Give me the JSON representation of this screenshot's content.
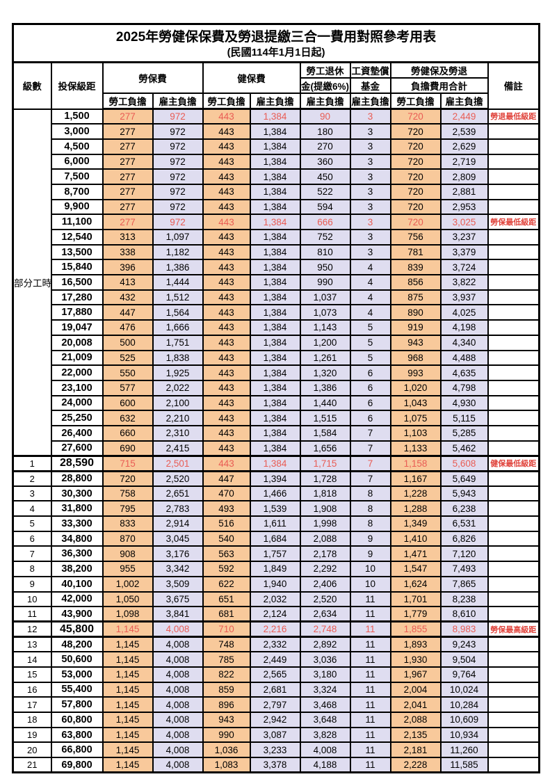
{
  "title": "2025年勞健保保費及勞退提繳三合一費用對照參考用表",
  "subtitle": "(民國114年1月1日起)",
  "header": {
    "level": "級數",
    "bracket": "投保級距",
    "labor_fee": "勞保費",
    "health_fee": "健保費",
    "pension_line1": "勞工退休",
    "pension_line2": "金(提繳6%)",
    "wage_fund_line1": "工資墊償",
    "wage_fund_line2": "基金",
    "total_line1": "勞健保及勞退",
    "total_line2": "負擔費用合計",
    "note": "備註",
    "employee": "勞工負擔",
    "employer": "雇主負擔"
  },
  "part_time_label": "部分工時",
  "part_time_group_size": 23,
  "colors": {
    "employee_cell_bg": "#F8C99B",
    "employer_cell_bg": "#DFDDF0",
    "highlight_number_red": "#E95C54",
    "note_red": "#E0443C",
    "border_black": "#000000"
  },
  "rows": [
    {
      "level": "",
      "bracket": "1,500",
      "fees": [
        "277",
        "972",
        "443",
        "1,384",
        "90",
        "3",
        "720",
        "2,449"
      ],
      "note": "勞退最低級距",
      "red": true,
      "thick": false
    },
    {
      "level": "",
      "bracket": "3,000",
      "fees": [
        "277",
        "972",
        "443",
        "1,384",
        "180",
        "3",
        "720",
        "2,539"
      ],
      "note": "",
      "red": false,
      "thick": false
    },
    {
      "level": "",
      "bracket": "4,500",
      "fees": [
        "277",
        "972",
        "443",
        "1,384",
        "270",
        "3",
        "720",
        "2,629"
      ],
      "note": "",
      "red": false,
      "thick": false
    },
    {
      "level": "",
      "bracket": "6,000",
      "fees": [
        "277",
        "972",
        "443",
        "1,384",
        "360",
        "3",
        "720",
        "2,719"
      ],
      "note": "",
      "red": false,
      "thick": false
    },
    {
      "level": "",
      "bracket": "7,500",
      "fees": [
        "277",
        "972",
        "443",
        "1,384",
        "450",
        "3",
        "720",
        "2,809"
      ],
      "note": "",
      "red": false,
      "thick": false
    },
    {
      "level": "",
      "bracket": "8,700",
      "fees": [
        "277",
        "972",
        "443",
        "1,384",
        "522",
        "3",
        "720",
        "2,881"
      ],
      "note": "",
      "red": false,
      "thick": false
    },
    {
      "level": "",
      "bracket": "9,900",
      "fees": [
        "277",
        "972",
        "443",
        "1,384",
        "594",
        "3",
        "720",
        "2,953"
      ],
      "note": "",
      "red": false,
      "thick": false
    },
    {
      "level": "",
      "bracket": "11,100",
      "fees": [
        "277",
        "972",
        "443",
        "1,384",
        "666",
        "3",
        "720",
        "3,025"
      ],
      "note": "勞保最低級距",
      "red": true,
      "thick": false
    },
    {
      "level": "",
      "bracket": "12,540",
      "fees": [
        "313",
        "1,097",
        "443",
        "1,384",
        "752",
        "3",
        "756",
        "3,237"
      ],
      "note": "",
      "red": false,
      "thick": false
    },
    {
      "level": "",
      "bracket": "13,500",
      "fees": [
        "338",
        "1,182",
        "443",
        "1,384",
        "810",
        "3",
        "781",
        "3,379"
      ],
      "note": "",
      "red": false,
      "thick": false
    },
    {
      "level": "",
      "bracket": "15,840",
      "fees": [
        "396",
        "1,386",
        "443",
        "1,384",
        "950",
        "4",
        "839",
        "3,724"
      ],
      "note": "",
      "red": false,
      "thick": false
    },
    {
      "level": "",
      "bracket": "16,500",
      "fees": [
        "413",
        "1,444",
        "443",
        "1,384",
        "990",
        "4",
        "856",
        "3,822"
      ],
      "note": "",
      "red": false,
      "thick": false
    },
    {
      "level": "",
      "bracket": "17,280",
      "fees": [
        "432",
        "1,512",
        "443",
        "1,384",
        "1,037",
        "4",
        "875",
        "3,937"
      ],
      "note": "",
      "red": false,
      "thick": false
    },
    {
      "level": "",
      "bracket": "17,880",
      "fees": [
        "447",
        "1,564",
        "443",
        "1,384",
        "1,073",
        "4",
        "890",
        "4,025"
      ],
      "note": "",
      "red": false,
      "thick": false
    },
    {
      "level": "",
      "bracket": "19,047",
      "fees": [
        "476",
        "1,666",
        "443",
        "1,384",
        "1,143",
        "5",
        "919",
        "4,198"
      ],
      "note": "",
      "red": false,
      "thick": false
    },
    {
      "level": "",
      "bracket": "20,008",
      "fees": [
        "500",
        "1,751",
        "443",
        "1,384",
        "1,200",
        "5",
        "943",
        "4,340"
      ],
      "note": "",
      "red": false,
      "thick": false
    },
    {
      "level": "",
      "bracket": "21,009",
      "fees": [
        "525",
        "1,838",
        "443",
        "1,384",
        "1,261",
        "5",
        "968",
        "4,488"
      ],
      "note": "",
      "red": false,
      "thick": false
    },
    {
      "level": "",
      "bracket": "22,000",
      "fees": [
        "550",
        "1,925",
        "443",
        "1,384",
        "1,320",
        "6",
        "993",
        "4,635"
      ],
      "note": "",
      "red": false,
      "thick": false
    },
    {
      "level": "",
      "bracket": "23,100",
      "fees": [
        "577",
        "2,022",
        "443",
        "1,384",
        "1,386",
        "6",
        "1,020",
        "4,798"
      ],
      "note": "",
      "red": false,
      "thick": false
    },
    {
      "level": "",
      "bracket": "24,000",
      "fees": [
        "600",
        "2,100",
        "443",
        "1,384",
        "1,440",
        "6",
        "1,043",
        "4,930"
      ],
      "note": "",
      "red": false,
      "thick": false
    },
    {
      "level": "",
      "bracket": "25,250",
      "fees": [
        "632",
        "2,210",
        "443",
        "1,384",
        "1,515",
        "6",
        "1,075",
        "5,115"
      ],
      "note": "",
      "red": false,
      "thick": false
    },
    {
      "level": "",
      "bracket": "26,400",
      "fees": [
        "660",
        "2,310",
        "443",
        "1,384",
        "1,584",
        "7",
        "1,103",
        "5,285"
      ],
      "note": "",
      "red": false,
      "thick": false
    },
    {
      "level": "",
      "bracket": "27,600",
      "fees": [
        "690",
        "2,415",
        "443",
        "1,384",
        "1,656",
        "7",
        "1,133",
        "5,462"
      ],
      "note": "",
      "red": false,
      "thick": false
    },
    {
      "level": "1",
      "bracket": "28,590",
      "fees": [
        "715",
        "2,501",
        "443",
        "1,384",
        "1,715",
        "7",
        "1,158",
        "5,608"
      ],
      "note": "健保最低級距",
      "red": true,
      "thick": true
    },
    {
      "level": "2",
      "bracket": "28,800",
      "fees": [
        "720",
        "2,520",
        "447",
        "1,394",
        "1,728",
        "7",
        "1,167",
        "5,649"
      ],
      "note": "",
      "red": false,
      "thick": false
    },
    {
      "level": "3",
      "bracket": "30,300",
      "fees": [
        "758",
        "2,651",
        "470",
        "1,466",
        "1,818",
        "8",
        "1,228",
        "5,943"
      ],
      "note": "",
      "red": false,
      "thick": false
    },
    {
      "level": "4",
      "bracket": "31,800",
      "fees": [
        "795",
        "2,783",
        "493",
        "1,539",
        "1,908",
        "8",
        "1,288",
        "6,238"
      ],
      "note": "",
      "red": false,
      "thick": false
    },
    {
      "level": "5",
      "bracket": "33,300",
      "fees": [
        "833",
        "2,914",
        "516",
        "1,611",
        "1,998",
        "8",
        "1,349",
        "6,531"
      ],
      "note": "",
      "red": false,
      "thick": false
    },
    {
      "level": "6",
      "bracket": "34,800",
      "fees": [
        "870",
        "3,045",
        "540",
        "1,684",
        "2,088",
        "9",
        "1,410",
        "6,826"
      ],
      "note": "",
      "red": false,
      "thick": false
    },
    {
      "level": "7",
      "bracket": "36,300",
      "fees": [
        "908",
        "3,176",
        "563",
        "1,757",
        "2,178",
        "9",
        "1,471",
        "7,120"
      ],
      "note": "",
      "red": false,
      "thick": false
    },
    {
      "level": "8",
      "bracket": "38,200",
      "fees": [
        "955",
        "3,342",
        "592",
        "1,849",
        "2,292",
        "10",
        "1,547",
        "7,493"
      ],
      "note": "",
      "red": false,
      "thick": false
    },
    {
      "level": "9",
      "bracket": "40,100",
      "fees": [
        "1,002",
        "3,509",
        "622",
        "1,940",
        "2,406",
        "10",
        "1,624",
        "7,865"
      ],
      "note": "",
      "red": false,
      "thick": false
    },
    {
      "level": "10",
      "bracket": "42,000",
      "fees": [
        "1,050",
        "3,675",
        "651",
        "2,032",
        "2,520",
        "11",
        "1,701",
        "8,238"
      ],
      "note": "",
      "red": false,
      "thick": false
    },
    {
      "level": "11",
      "bracket": "43,900",
      "fees": [
        "1,098",
        "3,841",
        "681",
        "2,124",
        "2,634",
        "11",
        "1,779",
        "8,610"
      ],
      "note": "",
      "red": false,
      "thick": false
    },
    {
      "level": "12",
      "bracket": "45,800",
      "fees": [
        "1,145",
        "4,008",
        "710",
        "2,216",
        "2,748",
        "11",
        "1,855",
        "8,983"
      ],
      "note": "勞保最高級距",
      "red": true,
      "thick": true
    },
    {
      "level": "13",
      "bracket": "48,200",
      "fees": [
        "1,145",
        "4,008",
        "748",
        "2,332",
        "2,892",
        "11",
        "1,893",
        "9,243"
      ],
      "note": "",
      "red": false,
      "thick": false
    },
    {
      "level": "14",
      "bracket": "50,600",
      "fees": [
        "1,145",
        "4,008",
        "785",
        "2,449",
        "3,036",
        "11",
        "1,930",
        "9,504"
      ],
      "note": "",
      "red": false,
      "thick": false
    },
    {
      "level": "15",
      "bracket": "53,000",
      "fees": [
        "1,145",
        "4,008",
        "822",
        "2,565",
        "3,180",
        "11",
        "1,967",
        "9,764"
      ],
      "note": "",
      "red": false,
      "thick": false
    },
    {
      "level": "16",
      "bracket": "55,400",
      "fees": [
        "1,145",
        "4,008",
        "859",
        "2,681",
        "3,324",
        "11",
        "2,004",
        "10,024"
      ],
      "note": "",
      "red": false,
      "thick": false
    },
    {
      "level": "17",
      "bracket": "57,800",
      "fees": [
        "1,145",
        "4,008",
        "896",
        "2,797",
        "3,468",
        "11",
        "2,041",
        "10,284"
      ],
      "note": "",
      "red": false,
      "thick": false
    },
    {
      "level": "18",
      "bracket": "60,800",
      "fees": [
        "1,145",
        "4,008",
        "943",
        "2,942",
        "3,648",
        "11",
        "2,088",
        "10,609"
      ],
      "note": "",
      "red": false,
      "thick": false
    },
    {
      "level": "19",
      "bracket": "63,800",
      "fees": [
        "1,145",
        "4,008",
        "990",
        "3,087",
        "3,828",
        "11",
        "2,135",
        "10,934"
      ],
      "note": "",
      "red": false,
      "thick": false
    },
    {
      "level": "20",
      "bracket": "66,800",
      "fees": [
        "1,145",
        "4,008",
        "1,036",
        "3,233",
        "4,008",
        "11",
        "2,181",
        "11,260"
      ],
      "note": "",
      "red": false,
      "thick": false
    },
    {
      "level": "21",
      "bracket": "69,800",
      "fees": [
        "1,145",
        "4,008",
        "1,083",
        "3,378",
        "4,188",
        "11",
        "2,228",
        "11,585"
      ],
      "note": "",
      "red": false,
      "thick": false
    }
  ]
}
